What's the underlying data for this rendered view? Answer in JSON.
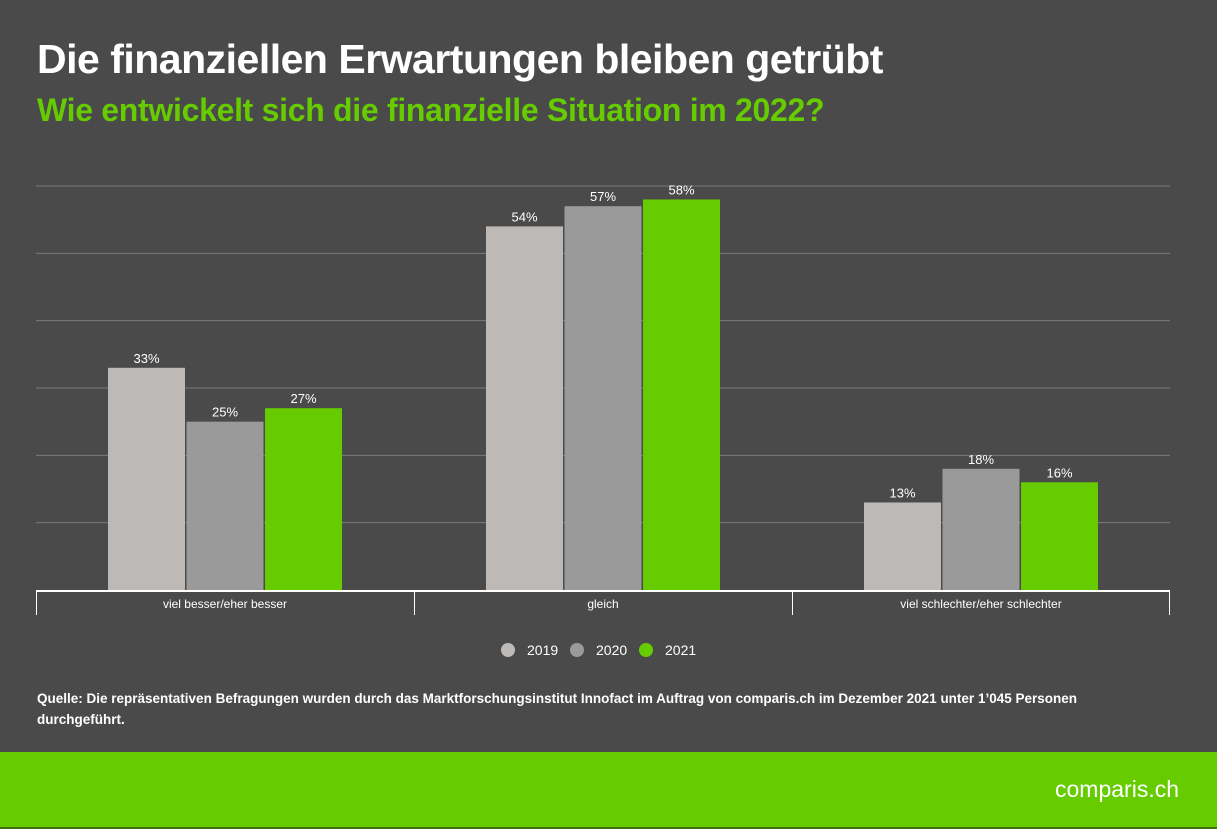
{
  "title": "Die finanziellen Erwartungen bleiben getrübt",
  "subtitle": "Wie entwickelt sich die finanzielle Situation im 2022?",
  "chart_data": {
    "type": "bar",
    "categories": [
      "viel besser/eher besser",
      "gleich",
      "viel schlechter/eher schlechter"
    ],
    "series": [
      {
        "name": "2019",
        "values": [
          33,
          54,
          13
        ],
        "color": "#bdb9b7"
      },
      {
        "name": "2020",
        "values": [
          25,
          57,
          18
        ],
        "color": "#9a9a9a"
      },
      {
        "name": "2021",
        "values": [
          27,
          58,
          16
        ],
        "color": "#66cc00"
      }
    ],
    "value_suffix": "%",
    "ylim": [
      0,
      60
    ],
    "grid": true,
    "legend": "bottom-center"
  },
  "source": "Quelle: Die repräsentativen Befragungen wurden durch das Marktforschungsinstitut Innofact im Auftrag von comparis.ch im Dezember 2021 unter 1’045 Personen durchgeführt.",
  "logo": "comparis.ch"
}
